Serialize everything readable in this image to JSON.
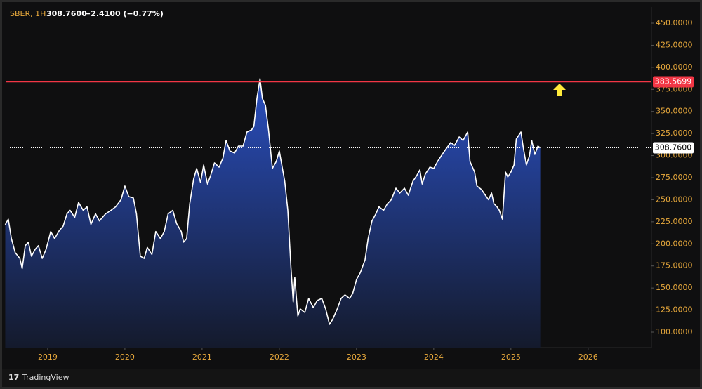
{
  "chart_data": {
    "type": "area",
    "header": {
      "symbol": "SBER, 1H",
      "price": "308.7600",
      "change": "−2.4100 (−0.77%)"
    },
    "brand": "TradingView",
    "color": "#ffffff",
    "fill_top": "#2a4fc0",
    "fill_bottom": "#141a2c",
    "x": [
      2018.45,
      2018.49,
      2018.53,
      2018.58,
      2018.64,
      2018.67,
      2018.71,
      2018.75,
      2018.79,
      2018.84,
      2018.88,
      2018.93,
      2018.98,
      2019.04,
      2019.09,
      2019.15,
      2019.2,
      2019.25,
      2019.29,
      2019.35,
      2019.4,
      2019.46,
      2019.51,
      2019.56,
      2019.62,
      2019.67,
      2019.75,
      2019.82,
      2019.88,
      2019.95,
      2020.0,
      2020.05,
      2020.11,
      2020.15,
      2020.2,
      2020.25,
      2020.29,
      2020.35,
      2020.4,
      2020.46,
      2020.51,
      2020.56,
      2020.62,
      2020.67,
      2020.73,
      2020.76,
      2020.8,
      2020.84,
      2020.89,
      2020.93,
      2020.98,
      2021.02,
      2021.07,
      2021.11,
      2021.16,
      2021.22,
      2021.27,
      2021.31,
      2021.36,
      2021.42,
      2021.47,
      2021.53,
      2021.58,
      2021.64,
      2021.67,
      2021.71,
      2021.75,
      2021.78,
      2021.82,
      2021.86,
      2021.91,
      2021.96,
      2022.0,
      2022.04,
      2022.07,
      2022.11,
      2022.15,
      2022.18,
      2022.2,
      2022.24,
      2022.27,
      2022.33,
      2022.38,
      2022.44,
      2022.49,
      2022.55,
      2022.6,
      2022.65,
      2022.69,
      2022.75,
      2022.8,
      2022.85,
      2022.91,
      2022.95,
      2023.0,
      2023.05,
      2023.11,
      2023.15,
      2023.2,
      2023.25,
      2023.29,
      2023.35,
      2023.4,
      2023.45,
      2023.51,
      2023.56,
      2023.62,
      2023.67,
      2023.73,
      2023.78,
      2023.82,
      2023.85,
      2023.89,
      2023.95,
      2024.0,
      2024.05,
      2024.11,
      2024.16,
      2024.22,
      2024.27,
      2024.33,
      2024.38,
      2024.44,
      2024.47,
      2024.53,
      2024.56,
      2024.62,
      2024.65,
      2024.71,
      2024.75,
      2024.78,
      2024.82,
      2024.85,
      2024.89,
      2024.93,
      2024.96,
      2025.0,
      2025.04,
      2025.07,
      2025.13,
      2025.16,
      2025.2,
      2025.24,
      2025.27,
      2025.31,
      2025.35,
      2025.38
    ],
    "values": [
      221.7,
      228,
      206,
      190,
      183.5,
      172,
      198,
      202,
      186,
      194,
      198,
      183.5,
      194,
      214,
      206,
      215,
      220,
      234,
      238,
      230,
      247,
      238,
      242,
      222,
      234,
      226,
      234,
      238,
      242,
      250,
      265.5,
      253.5,
      252,
      234,
      186,
      183.5,
      196,
      188,
      214,
      206,
      214,
      234,
      238,
      223,
      214,
      202,
      206,
      245.6,
      273.4,
      285.4,
      269.4,
      289.3,
      267.8,
      277.4,
      291.7,
      286.9,
      297.3,
      317.2,
      305.2,
      302.9,
      310.8,
      310.8,
      326.7,
      329.1,
      333.1,
      364.9,
      387.2,
      364.9,
      357,
      329.1,
      285.4,
      293.3,
      305.2,
      285.4,
      271,
      238,
      174,
      134.2,
      162,
      118.3,
      126.3,
      122.3,
      138.2,
      127.8,
      135.8,
      138.2,
      126.3,
      108.8,
      114.3,
      126.3,
      138.2,
      142.2,
      138.2,
      143.8,
      159.7,
      167.6,
      181.9,
      206,
      226,
      234,
      242,
      238,
      245.6,
      250,
      263.1,
      257.5,
      263.1,
      255.1,
      271,
      277.4,
      283.8,
      267.8,
      279,
      286.9,
      285.4,
      293.3,
      301.3,
      307.6,
      314.8,
      311.6,
      321.1,
      317.2,
      326.7,
      293.3,
      281.4,
      265.5,
      261.5,
      257.5,
      250,
      257.5,
      245.6,
      242,
      238,
      228,
      281.4,
      275.8,
      281.4,
      289.3,
      318.8,
      326.7,
      309.2,
      289.3,
      299.7,
      317.2,
      301.3,
      310.8,
      308.76
    ],
    "xlim": [
      2018.455,
      2026.82
    ],
    "xticks": [
      2019,
      2020,
      2021,
      2022,
      2023,
      2024,
      2025,
      2026
    ],
    "ylim": [
      82.5,
      468.3
    ],
    "yticks": [
      {
        "value": 100,
        "label": "100.0000"
      },
      {
        "value": 125,
        "label": "125.0000"
      },
      {
        "value": 150,
        "label": "150.0000"
      },
      {
        "value": 175,
        "label": "175.0000"
      },
      {
        "value": 200,
        "label": "200.0000"
      },
      {
        "value": 225,
        "label": "225.0000"
      },
      {
        "value": 250,
        "label": "250.0000"
      },
      {
        "value": 275,
        "label": "275.0000"
      },
      {
        "value": 300,
        "label": "300.0000"
      },
      {
        "value": 325,
        "label": "325.0000"
      },
      {
        "value": 350,
        "label": "350.0000"
      },
      {
        "value": 375,
        "label": "375.0000"
      },
      {
        "value": 400,
        "label": "400.0000"
      },
      {
        "value": 425,
        "label": "425.0000"
      },
      {
        "value": 450,
        "label": "450.0000"
      }
    ],
    "hline": {
      "value": 383.5699,
      "label": "383.5699",
      "color": "#f23645"
    },
    "last": {
      "value": 308.76,
      "label": "308.7600"
    }
  }
}
